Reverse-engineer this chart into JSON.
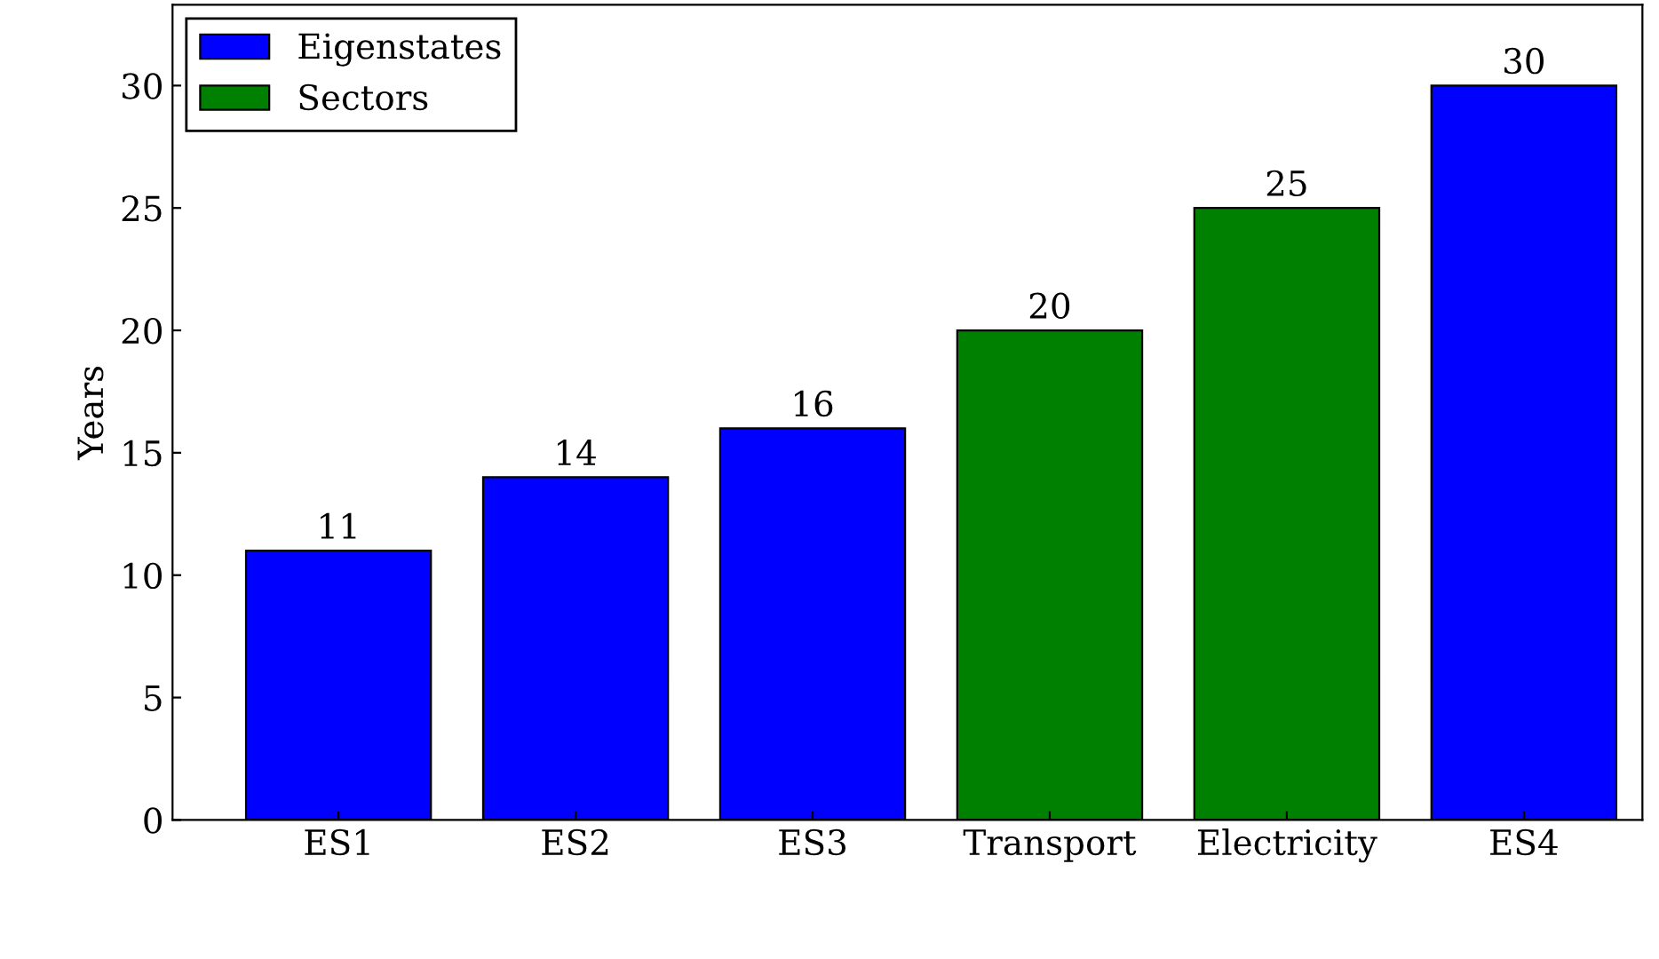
{
  "chart_data": {
    "type": "bar",
    "ylabel": "Years",
    "categories": [
      "ES1",
      "ES2",
      "ES3",
      "Transport",
      "Electricity",
      "ES4"
    ],
    "series": [
      {
        "name": "Eigenstates",
        "color": "#0000ff",
        "values": [
          11,
          14,
          16,
          null,
          null,
          30
        ]
      },
      {
        "name": "Sectors",
        "color": "#008000",
        "values": [
          null,
          null,
          null,
          20,
          25,
          null
        ]
      }
    ],
    "ylim": [
      0,
      33.3
    ],
    "yticks": [
      0,
      5,
      10,
      15,
      20,
      25,
      30
    ],
    "grid": false,
    "legend": "top left",
    "data_labels": true
  }
}
